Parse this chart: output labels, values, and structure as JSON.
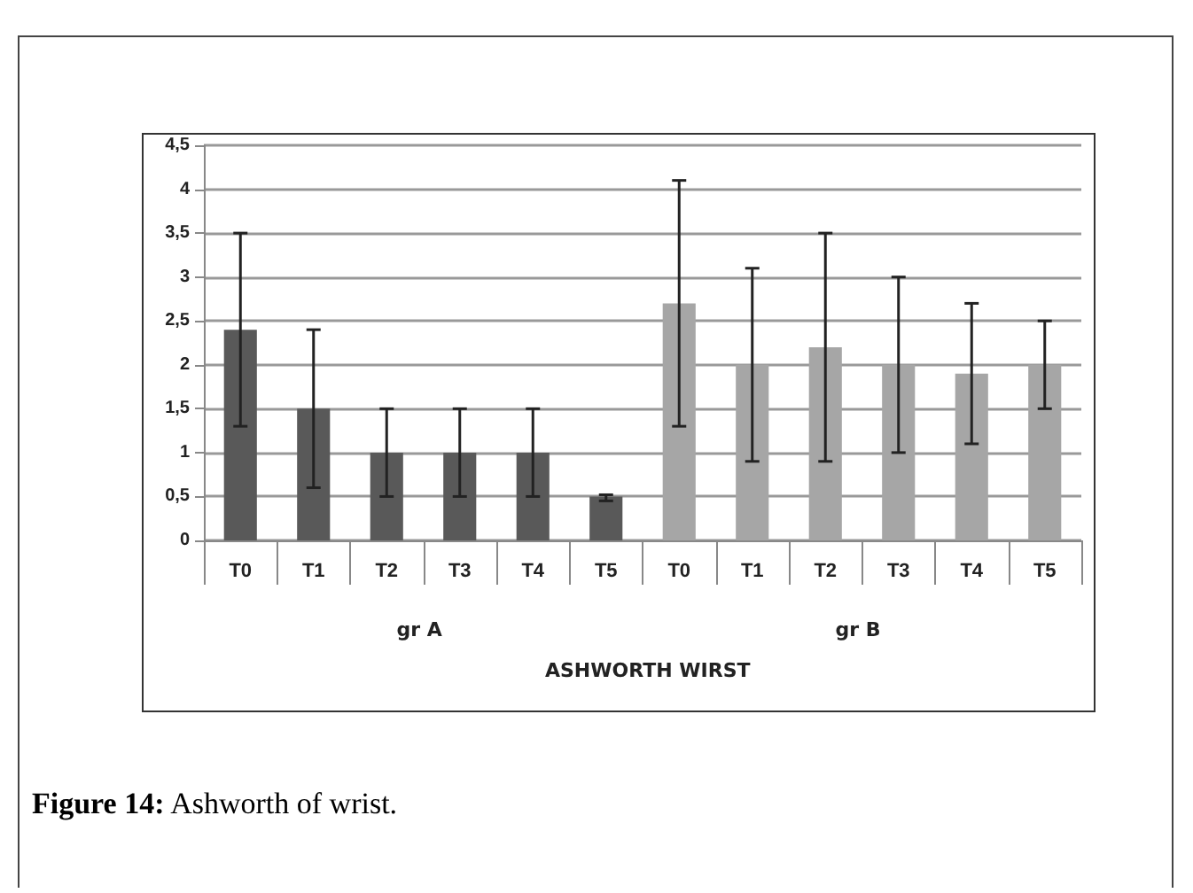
{
  "chart_data": {
    "type": "bar",
    "xlabel": "ASHWORTH WIRST",
    "categories": [
      "T0",
      "T1",
      "T2",
      "T3",
      "T4",
      "T5",
      "T0",
      "T1",
      "T2",
      "T3",
      "T4",
      "T5"
    ],
    "values": [
      2.4,
      1.5,
      1,
      1,
      1,
      0.5,
      2.7,
      2,
      2.2,
      2,
      1.9,
      2
    ],
    "colors": [
      "#595959",
      "#595959",
      "#595959",
      "#595959",
      "#595959",
      "#595959",
      "#a6a6a6",
      "#a6a6a6",
      "#a6a6a6",
      "#a6a6a6",
      "#a6a6a6",
      "#a6a6a6"
    ],
    "errors": [
      [
        1.3,
        3.5
      ],
      [
        0.6,
        2.4
      ],
      [
        0.5,
        1.5
      ],
      [
        0.5,
        1.5
      ],
      [
        0.5,
        1.5
      ],
      [
        0.45,
        0.52
      ],
      [
        1.3,
        4.1
      ],
      [
        0.9,
        3.1
      ],
      [
        0.9,
        3.5
      ],
      [
        1,
        3
      ],
      [
        1.1,
        2.7
      ],
      [
        1.5,
        2.5
      ]
    ],
    "ylim": [
      0,
      4.5
    ],
    "yticks": [
      0,
      {
        "value": 0.5,
        "label": "0,5"
      },
      1,
      {
        "value": 1.5,
        "label": "1,5"
      },
      2,
      {
        "value": 2.5,
        "label": "2,5"
      },
      3,
      {
        "value": 3.5,
        "label": "3,5"
      },
      4,
      {
        "value": 4.5,
        "label": "4,5"
      }
    ],
    "grid": "y",
    "annotations": [
      "gr A",
      "gr B",
      "Figure 14: Ashworth of wrist."
    ]
  }
}
